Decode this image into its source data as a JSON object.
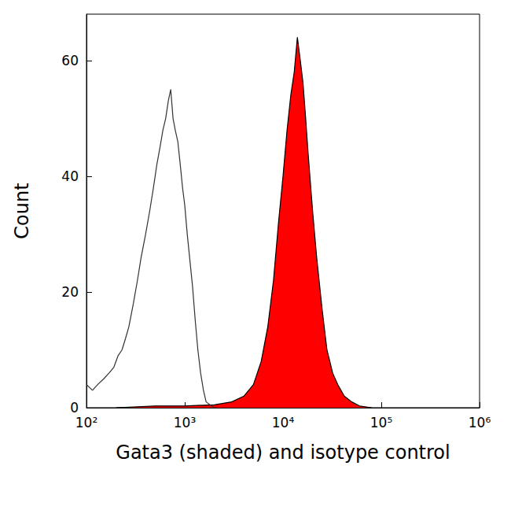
{
  "chart_data": {
    "type": "histogram",
    "x_label": "Gata3 (shaded) and isotype control",
    "y_label": "Count",
    "log": "x",
    "grid": false,
    "xlim": [
      100,
      1000000
    ],
    "xticks": [
      {
        "value": 100,
        "label": "10²"
      },
      {
        "value": 1000,
        "label": "10³"
      },
      {
        "value": 10000,
        "label": "10⁴"
      },
      {
        "value": 100000,
        "label": "10⁵"
      },
      {
        "value": 1000000,
        "label": "10⁶"
      }
    ],
    "ylim": [
      0,
      68
    ],
    "yticks": [
      0,
      20,
      40,
      60
    ],
    "series": [
      {
        "type": "line",
        "color": "#333333",
        "x": [
          100,
          115,
          130,
          150,
          170,
          190,
          210,
          230,
          250,
          270,
          300,
          330,
          360,
          400,
          440,
          480,
          520,
          560,
          600,
          640,
          680,
          720,
          760,
          800,
          850,
          900,
          950,
          1000,
          1060,
          1120,
          1200,
          1280,
          1360,
          1450,
          1550,
          1650,
          1800,
          2000
        ],
        "values": [
          4,
          3,
          4,
          5,
          6,
          7,
          9,
          10,
          12,
          14,
          18,
          22,
          26,
          30,
          34,
          38,
          42,
          45,
          48,
          50,
          53,
          55,
          50,
          48,
          46,
          42,
          38,
          35,
          30,
          26,
          21,
          15,
          10,
          6,
          3,
          1,
          0.5,
          0
        ]
      },
      {
        "type": "area",
        "color": "#ff0000",
        "x": [
          200,
          500,
          1000,
          2000,
          3000,
          4000,
          5000,
          6000,
          7000,
          8000,
          9000,
          10000,
          11000,
          12000,
          13000,
          14000,
          15000,
          16000,
          17000,
          18000,
          20000,
          22000,
          25000,
          28000,
          32000,
          36000,
          42000,
          50000,
          60000,
          80000
        ],
        "values": [
          0,
          0.3,
          0.3,
          0.5,
          1,
          2,
          4,
          8,
          14,
          22,
          32,
          40,
          48,
          54,
          58,
          64,
          60,
          56,
          50,
          44,
          34,
          26,
          17,
          10,
          6,
          4,
          2,
          1,
          0.3,
          0
        ]
      }
    ]
  }
}
